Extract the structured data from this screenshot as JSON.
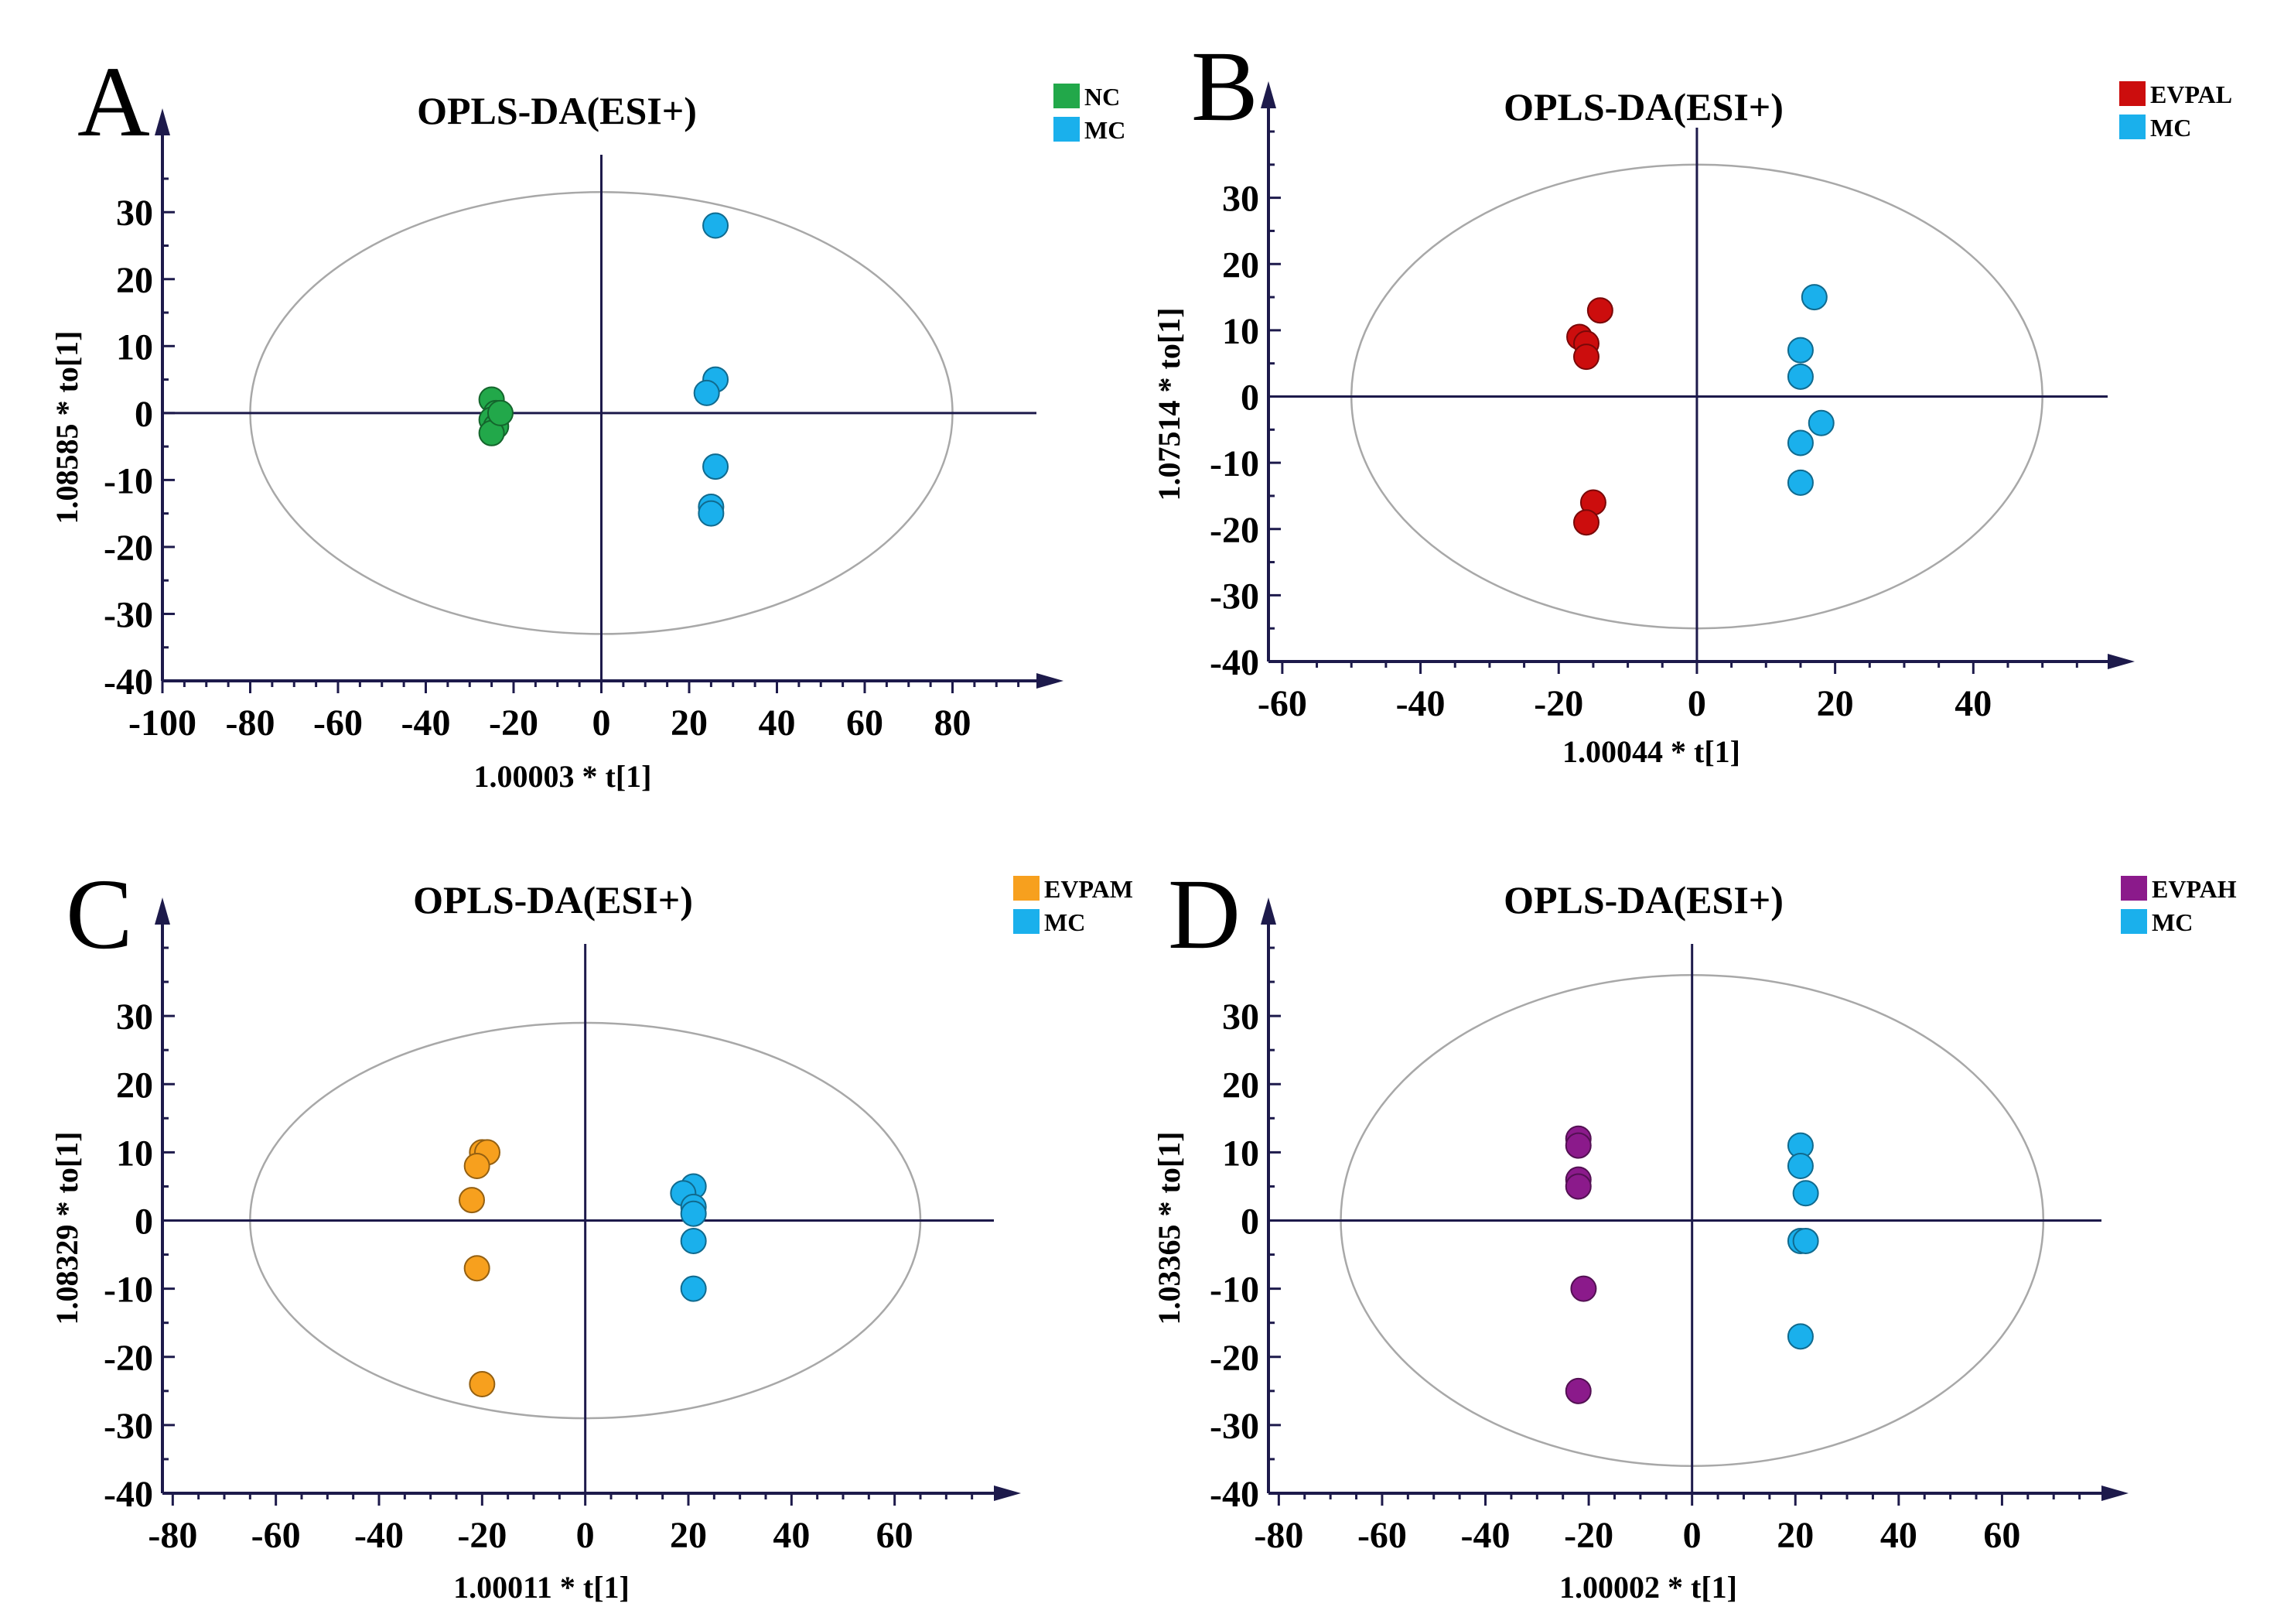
{
  "chart_data": [
    {
      "type": "scatter",
      "panel": "A",
      "title": "OPLS-DA(ESI+)",
      "xlabel": "1.00003 * t[1]",
      "ylabel": "1.08585 * to[1]",
      "xlim": [
        -100,
        100
      ],
      "ylim": [
        -40,
        38
      ],
      "xticks": [
        -100,
        -80,
        -60,
        -40,
        -20,
        0,
        20,
        40,
        60,
        80
      ],
      "yticks": [
        -40,
        -30,
        -20,
        -10,
        0,
        10,
        20,
        30
      ],
      "ellipse": {
        "rx": 80,
        "ry": 33
      },
      "legend_position": "top-right",
      "series": [
        {
          "name": "NC",
          "color": "#22a84a",
          "points": [
            [
              -25,
              2
            ],
            [
              -24,
              0
            ],
            [
              -25,
              -1
            ],
            [
              -24,
              -2
            ],
            [
              -25,
              -3
            ],
            [
              -23,
              0
            ]
          ]
        },
        {
          "name": "MC",
          "color": "#1ab0ec",
          "points": [
            [
              26,
              28
            ],
            [
              26,
              5
            ],
            [
              24,
              3
            ],
            [
              26,
              -8
            ],
            [
              25,
              -14
            ],
            [
              25,
              -15
            ]
          ]
        }
      ]
    },
    {
      "type": "scatter",
      "panel": "B",
      "title": "OPLS-DA(ESI+)",
      "xlabel": "1.00044 * t[1]",
      "ylabel": "1.07514 * to[1]",
      "xlim": [
        -62,
        60
      ],
      "ylim": [
        -40,
        40
      ],
      "xticks": [
        -60,
        -40,
        -20,
        0,
        20,
        40
      ],
      "yticks": [
        -40,
        -30,
        -20,
        -10,
        0,
        10,
        20,
        30
      ],
      "ellipse": {
        "rx": 50,
        "ry": 35
      },
      "legend_position": "top-right",
      "series": [
        {
          "name": "EVPAL",
          "color": "#cc0d0d",
          "points": [
            [
              -14,
              13
            ],
            [
              -17,
              9
            ],
            [
              -16,
              8
            ],
            [
              -16,
              6
            ],
            [
              -15,
              -16
            ],
            [
              -16,
              -19
            ]
          ]
        },
        {
          "name": "MC",
          "color": "#1ab0ec",
          "points": [
            [
              17,
              15
            ],
            [
              15,
              7
            ],
            [
              15,
              3
            ],
            [
              18,
              -4
            ],
            [
              15,
              -7
            ],
            [
              15,
              -13
            ]
          ]
        }
      ]
    },
    {
      "type": "scatter",
      "panel": "C",
      "title": "OPLS-DA(ESI+)",
      "xlabel": "1.00011 * t[1]",
      "ylabel": "1.08329 * to[1]",
      "xlim": [
        -82,
        80
      ],
      "ylim": [
        -40,
        40
      ],
      "xticks": [
        -80,
        -60,
        -40,
        -20,
        0,
        20,
        40,
        60
      ],
      "yticks": [
        -40,
        -30,
        -20,
        -10,
        0,
        10,
        20,
        30
      ],
      "ellipse": {
        "rx": 65,
        "ry": 29
      },
      "legend_position": "top-right",
      "series": [
        {
          "name": "EVPAM",
          "color": "#f7a01e",
          "points": [
            [
              -20,
              10
            ],
            [
              -19,
              10
            ],
            [
              -21,
              8
            ],
            [
              -22,
              3
            ],
            [
              -21,
              -7
            ],
            [
              -20,
              -24
            ]
          ]
        },
        {
          "name": "MC",
          "color": "#1ab0ec",
          "points": [
            [
              21,
              5
            ],
            [
              19,
              4
            ],
            [
              21,
              2
            ],
            [
              21,
              1
            ],
            [
              21,
              -3
            ],
            [
              21,
              -10
            ]
          ]
        }
      ]
    },
    {
      "type": "scatter",
      "panel": "D",
      "title": "OPLS-DA(ESI+)",
      "xlabel": "1.00002 * t[1]",
      "ylabel": "1.03365 * to[1]",
      "xlim": [
        -82,
        80
      ],
      "ylim": [
        -40,
        40
      ],
      "xticks": [
        -80,
        -60,
        -40,
        -20,
        0,
        20,
        40,
        60
      ],
      "yticks": [
        -40,
        -30,
        -20,
        -10,
        0,
        10,
        20,
        30
      ],
      "ellipse": {
        "rx": 68,
        "ry": 36
      },
      "legend_position": "top-right",
      "series": [
        {
          "name": "EVPAH",
          "color": "#8b1a8b",
          "points": [
            [
              -22,
              12
            ],
            [
              -22,
              11
            ],
            [
              -22,
              6
            ],
            [
              -22,
              5
            ],
            [
              -21,
              -10
            ],
            [
              -22,
              -25
            ]
          ]
        },
        {
          "name": "MC",
          "color": "#1ab0ec",
          "points": [
            [
              21,
              11
            ],
            [
              21,
              8
            ],
            [
              22,
              4
            ],
            [
              21,
              -3
            ],
            [
              22,
              -3
            ],
            [
              21,
              -17
            ]
          ]
        }
      ]
    }
  ]
}
